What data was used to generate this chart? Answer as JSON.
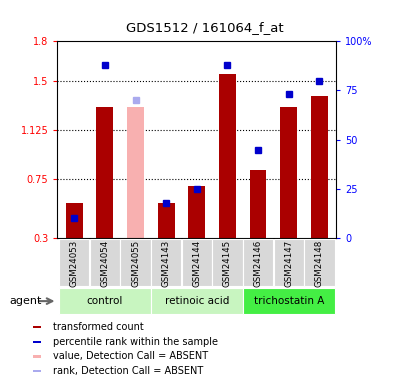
{
  "title": "GDS1512 / 161064_f_at",
  "samples": [
    "GSM24053",
    "GSM24054",
    "GSM24055",
    "GSM24143",
    "GSM24144",
    "GSM24145",
    "GSM24146",
    "GSM24147",
    "GSM24148"
  ],
  "red_values": [
    0.57,
    1.3,
    null,
    0.57,
    0.7,
    1.55,
    0.82,
    1.3,
    1.38
  ],
  "blue_pct": [
    10.0,
    88.0,
    null,
    18.0,
    25.0,
    88.0,
    45.0,
    73.0,
    80.0
  ],
  "pink_value": [
    null,
    null,
    1.3,
    null,
    null,
    null,
    null,
    null,
    null
  ],
  "lightblue_pct": [
    null,
    null,
    70.0,
    null,
    null,
    null,
    null,
    null,
    null
  ],
  "groups": [
    {
      "label": "control",
      "indices": [
        0,
        1,
        2
      ],
      "color": "#c8f5c0"
    },
    {
      "label": "retinoic acid",
      "indices": [
        3,
        4,
        5
      ],
      "color": "#c8f5c0"
    },
    {
      "label": "trichostatin A",
      "indices": [
        6,
        7,
        8
      ],
      "color": "#44ee44"
    }
  ],
  "ylim_left": [
    0.3,
    1.8
  ],
  "ylim_right": [
    0,
    100
  ],
  "yticks_left": [
    0.3,
    0.75,
    1.125,
    1.5,
    1.8
  ],
  "ytick_labels_left": [
    "0.3",
    "0.75",
    "1.125",
    "1.5",
    "1.8"
  ],
  "yticks_right": [
    0,
    25,
    50,
    75,
    100
  ],
  "ytick_labels_right": [
    "0",
    "25",
    "50",
    "75",
    "100%"
  ],
  "dotted_lines": [
    0.75,
    1.125,
    1.5
  ],
  "bar_color_red": "#aa0000",
  "bar_color_pink": "#f8b0b0",
  "dot_color_blue": "#0000cc",
  "dot_color_lb": "#aaaaee",
  "agent_label": "agent",
  "legend_items": [
    {
      "label": "transformed count",
      "color": "#aa0000"
    },
    {
      "label": "percentile rank within the sample",
      "color": "#0000cc"
    },
    {
      "label": "value, Detection Call = ABSENT",
      "color": "#f8b0b0"
    },
    {
      "label": "rank, Detection Call = ABSENT",
      "color": "#aaaaee"
    }
  ]
}
